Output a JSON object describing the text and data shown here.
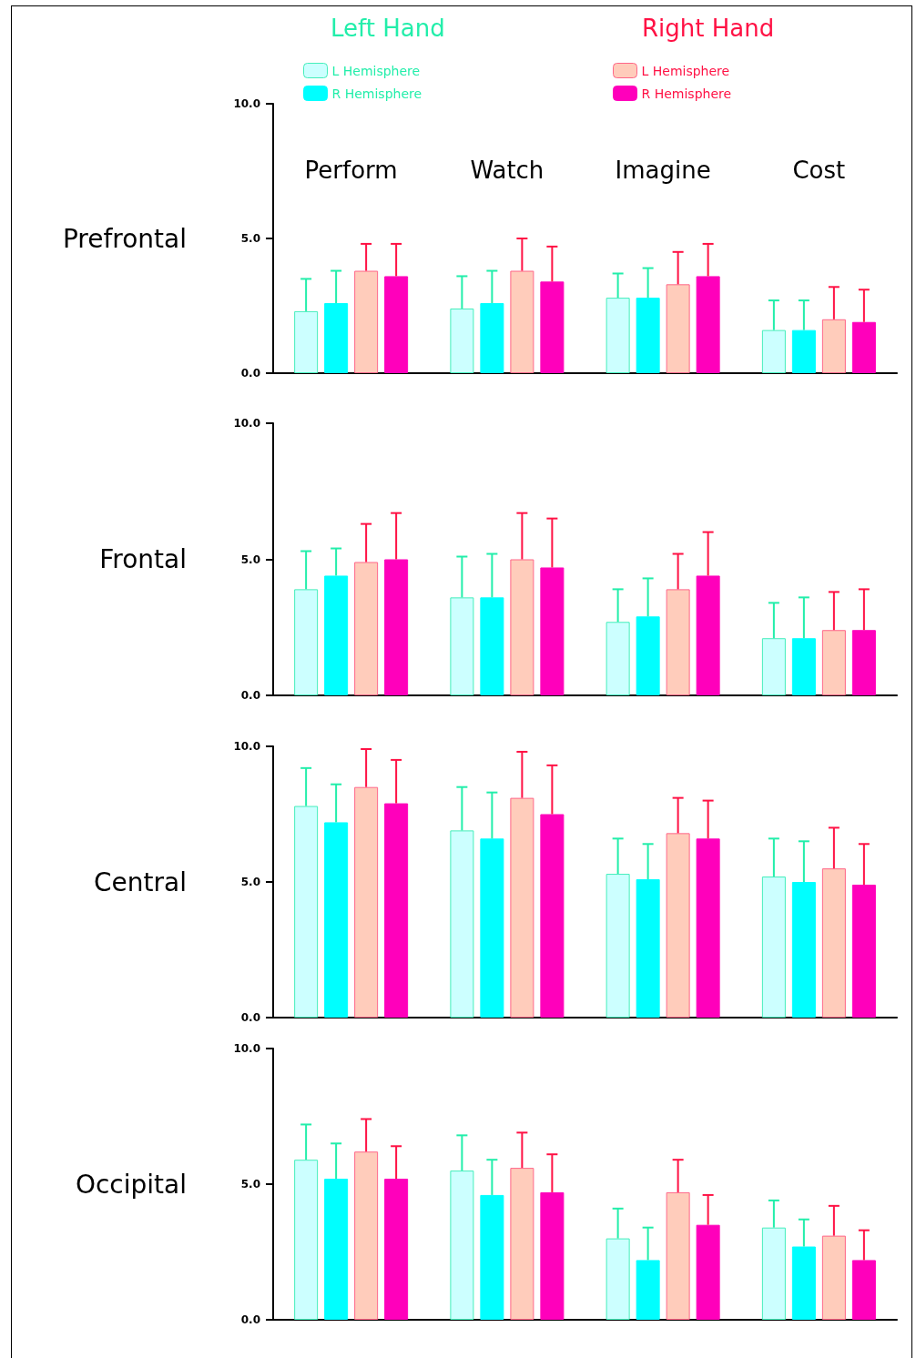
{
  "chart_data": [
    {
      "type": "bar",
      "ylabel": "Prefrontal",
      "categories": [
        "Perform",
        "Watch",
        "Imagine",
        "Cost"
      ],
      "ylim": [
        0,
        10
      ],
      "yticks": [
        {
          "value": 0,
          "label": "0.0"
        },
        {
          "value": 5,
          "label": "5.0"
        },
        {
          "value": 10,
          "label": "10.0"
        }
      ],
      "grid": false,
      "legend": "top",
      "annotations": [
        "Left Hand",
        "Right Hand"
      ],
      "series": [
        {
          "name": "L Hemisphere",
          "color": "#ccffff",
          "values": [
            2.3,
            2.4,
            2.8,
            1.6
          ],
          "errors": [
            [
              2.3,
              3.5
            ],
            [
              2.4,
              3.6
            ],
            [
              2.8,
              3.7
            ],
            [
              1.6,
              2.7
            ]
          ]
        },
        {
          "name": "R Hemisphere",
          "color": "#00ffff",
          "values": [
            2.6,
            2.6,
            2.8,
            1.6
          ],
          "errors": [
            [
              2.6,
              3.8
            ],
            [
              2.6,
              3.8
            ],
            [
              2.8,
              3.9
            ],
            [
              1.6,
              2.7
            ]
          ]
        },
        {
          "name": "L Hemisphere",
          "color": "#ffccbb",
          "values": [
            3.8,
            3.8,
            3.3,
            2.0
          ],
          "errors": [
            [
              3.8,
              4.8
            ],
            [
              3.8,
              5.0
            ],
            [
              3.3,
              4.5
            ],
            [
              2.0,
              3.2
            ]
          ]
        },
        {
          "name": "R Hemisphere",
          "color": "#ff00bb",
          "values": [
            3.6,
            3.4,
            3.6,
            1.9
          ],
          "errors": [
            [
              3.6,
              4.8
            ],
            [
              3.4,
              4.7
            ],
            [
              3.6,
              4.8
            ],
            [
              1.9,
              3.1
            ]
          ]
        }
      ]
    },
    {
      "type": "bar",
      "ylabel": "Frontal",
      "categories": [
        null,
        null,
        null,
        null
      ],
      "ylim": [
        0,
        10
      ],
      "yticks": [
        {
          "value": 0,
          "label": "0.0"
        },
        {
          "value": 5,
          "label": "5.0"
        },
        {
          "value": 10,
          "label": "10.0"
        }
      ],
      "grid": false,
      "series": [
        {
          "color": "#ccffff",
          "values": [
            3.9,
            3.6,
            2.7,
            2.1
          ],
          "errors": [
            [
              3.9,
              5.3
            ],
            [
              3.6,
              5.1
            ],
            [
              2.7,
              3.9
            ],
            [
              2.1,
              3.4
            ]
          ]
        },
        {
          "color": "#00ffff",
          "values": [
            4.4,
            3.6,
            2.9,
            2.1
          ],
          "errors": [
            [
              4.4,
              5.4
            ],
            [
              3.6,
              5.2
            ],
            [
              2.9,
              4.3
            ],
            [
              2.1,
              3.6
            ]
          ]
        },
        {
          "color": "#ffccbb",
          "values": [
            4.9,
            5.0,
            3.9,
            2.4
          ],
          "errors": [
            [
              4.9,
              6.3
            ],
            [
              5.0,
              6.7
            ],
            [
              3.9,
              5.2
            ],
            [
              2.4,
              3.8
            ]
          ]
        },
        {
          "color": "#ff00bb",
          "values": [
            5.0,
            4.7,
            4.4,
            2.4
          ],
          "errors": [
            [
              5.0,
              6.7
            ],
            [
              4.7,
              6.5
            ],
            [
              4.4,
              6.0
            ],
            [
              2.4,
              3.9
            ]
          ]
        }
      ]
    },
    {
      "type": "bar",
      "ylabel": "Central",
      "categories": [
        null,
        null,
        null,
        null
      ],
      "ylim": [
        0,
        10
      ],
      "yticks": [
        {
          "value": 0,
          "label": "0.0"
        },
        {
          "value": 5,
          "label": "5.0"
        },
        {
          "value": 10,
          "label": "10.0"
        }
      ],
      "grid": false,
      "series": [
        {
          "color": "#ccffff",
          "values": [
            7.8,
            6.9,
            5.3,
            5.2
          ],
          "errors": [
            [
              7.8,
              9.2
            ],
            [
              6.9,
              8.5
            ],
            [
              5.3,
              6.6
            ],
            [
              5.2,
              6.6
            ]
          ]
        },
        {
          "color": "#00ffff",
          "values": [
            7.2,
            6.6,
            5.1,
            5.0
          ],
          "errors": [
            [
              7.2,
              8.6
            ],
            [
              6.6,
              8.3
            ],
            [
              5.1,
              6.4
            ],
            [
              5.0,
              6.5
            ]
          ]
        },
        {
          "color": "#ffccbb",
          "values": [
            8.5,
            8.1,
            6.8,
            5.5
          ],
          "errors": [
            [
              8.5,
              9.9
            ],
            [
              8.1,
              9.8
            ],
            [
              6.8,
              8.1
            ],
            [
              5.5,
              7.0
            ]
          ]
        },
        {
          "color": "#ff00bb",
          "values": [
            7.9,
            7.5,
            6.6,
            4.9
          ],
          "errors": [
            [
              7.9,
              9.5
            ],
            [
              7.5,
              9.3
            ],
            [
              6.6,
              8.0
            ],
            [
              4.9,
              6.4
            ]
          ]
        }
      ]
    },
    {
      "type": "bar",
      "ylabel": "Occipital",
      "categories": [
        null,
        null,
        null,
        null
      ],
      "ylim": [
        0,
        10
      ],
      "yticks": [
        {
          "value": 0,
          "label": "0.0"
        },
        {
          "value": 5,
          "label": "5.0"
        },
        {
          "value": 10,
          "label": "10.0"
        }
      ],
      "grid": false,
      "series": [
        {
          "color": "#ccffff",
          "values": [
            5.9,
            5.5,
            3.0,
            3.4
          ],
          "errors": [
            [
              5.9,
              7.2
            ],
            [
              5.5,
              6.8
            ],
            [
              3.0,
              4.1
            ],
            [
              3.4,
              4.4
            ]
          ]
        },
        {
          "color": "#00ffff",
          "values": [
            5.2,
            4.6,
            2.2,
            2.7
          ],
          "errors": [
            [
              5.2,
              6.5
            ],
            [
              4.6,
              5.9
            ],
            [
              2.2,
              3.4
            ],
            [
              2.7,
              3.7
            ]
          ]
        },
        {
          "color": "#ffccbb",
          "values": [
            6.2,
            5.6,
            4.7,
            3.1
          ],
          "errors": [
            [
              6.2,
              7.4
            ],
            [
              5.6,
              6.9
            ],
            [
              4.7,
              5.9
            ],
            [
              3.1,
              4.2
            ]
          ]
        },
        {
          "color": "#ff00bb",
          "values": [
            5.2,
            4.7,
            3.5,
            2.2
          ],
          "errors": [
            [
              5.2,
              6.4
            ],
            [
              4.7,
              6.1
            ],
            [
              3.5,
              4.6
            ],
            [
              2.2,
              3.3
            ]
          ]
        }
      ]
    }
  ]
}
